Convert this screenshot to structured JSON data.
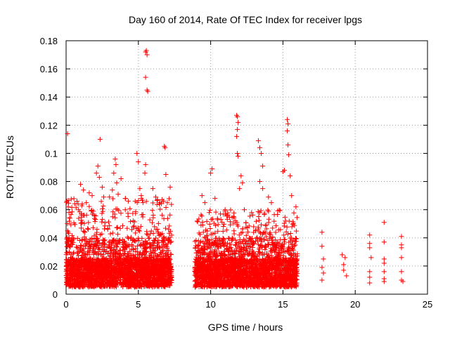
{
  "chart_data": {
    "type": "scatter",
    "title": "Day 160 of 2014, Rate Of TEC Index for receiver lpgs",
    "xlabel": "GPS time / hours",
    "ylabel": "ROTI / TECUs",
    "xlim": [
      0,
      25
    ],
    "ylim": [
      0,
      0.18
    ],
    "xticks": [
      0,
      5,
      10,
      15,
      20,
      25
    ],
    "yticks": [
      0,
      0.02,
      0.04,
      0.06,
      0.08,
      0.1,
      0.12,
      0.14,
      0.16,
      0.18
    ],
    "ytick_labels": [
      "0",
      "0.02",
      "0.04",
      "0.06",
      "0.08",
      "0.1",
      "0.12",
      "0.14",
      "0.16",
      "0.18"
    ],
    "grid": true,
    "marker": "+",
    "color": "#ff0000",
    "series": [
      {
        "name": "ROTI",
        "points": [
          [
            0.1,
            0.114
          ],
          [
            0.05,
            0.066
          ],
          [
            0.15,
            0.062
          ],
          [
            0.2,
            0.058
          ],
          [
            0.25,
            0.054
          ],
          [
            0.1,
            0.045
          ],
          [
            0.2,
            0.04
          ],
          [
            1.0,
            0.078
          ],
          [
            1.2,
            0.074
          ],
          [
            1.4,
            0.065
          ],
          [
            1.6,
            0.072
          ],
          [
            1.8,
            0.07
          ],
          [
            2.1,
            0.086
          ],
          [
            2.2,
            0.091
          ],
          [
            2.3,
            0.083
          ],
          [
            2.35,
            0.11
          ],
          [
            2.5,
            0.076
          ],
          [
            2.6,
            0.069
          ],
          [
            3.0,
            0.069
          ],
          [
            3.2,
            0.074
          ],
          [
            3.3,
            0.086
          ],
          [
            3.4,
            0.096
          ],
          [
            3.45,
            0.092
          ],
          [
            3.5,
            0.079
          ],
          [
            3.6,
            0.071
          ],
          [
            3.8,
            0.082
          ],
          [
            4.1,
            0.068
          ],
          [
            4.3,
            0.066
          ],
          [
            4.9,
            0.1
          ],
          [
            5.0,
            0.094
          ],
          [
            5.1,
            0.075
          ],
          [
            5.2,
            0.07
          ],
          [
            5.5,
            0.172
          ],
          [
            5.55,
            0.173
          ],
          [
            5.6,
            0.17
          ],
          [
            5.5,
            0.154
          ],
          [
            5.6,
            0.145
          ],
          [
            5.65,
            0.144
          ],
          [
            5.5,
            0.092
          ],
          [
            5.45,
            0.086
          ],
          [
            6.0,
            0.075
          ],
          [
            6.2,
            0.069
          ],
          [
            6.5,
            0.065
          ],
          [
            6.8,
            0.105
          ],
          [
            6.85,
            0.104
          ],
          [
            6.9,
            0.085
          ],
          [
            7.2,
            0.076
          ],
          [
            7.0,
            0.065
          ],
          [
            9.4,
            0.07
          ],
          [
            9.6,
            0.065
          ],
          [
            10.0,
            0.086
          ],
          [
            10.1,
            0.089
          ],
          [
            10.3,
            0.068
          ],
          [
            11.0,
            0.06
          ],
          [
            11.8,
            0.127
          ],
          [
            11.85,
            0.126
          ],
          [
            11.9,
            0.122
          ],
          [
            11.85,
            0.117
          ],
          [
            11.8,
            0.112
          ],
          [
            11.85,
            0.1
          ],
          [
            11.9,
            0.098
          ],
          [
            12.1,
            0.084
          ],
          [
            12.2,
            0.079
          ],
          [
            12.0,
            0.075
          ],
          [
            13.3,
            0.109
          ],
          [
            13.4,
            0.104
          ],
          [
            13.5,
            0.1
          ],
          [
            13.6,
            0.091
          ],
          [
            13.4,
            0.08
          ],
          [
            13.6,
            0.075
          ],
          [
            14.0,
            0.069
          ],
          [
            14.2,
            0.065
          ],
          [
            15.0,
            0.087
          ],
          [
            15.1,
            0.088
          ],
          [
            15.3,
            0.124
          ],
          [
            15.35,
            0.121
          ],
          [
            15.3,
            0.116
          ],
          [
            15.35,
            0.106
          ],
          [
            15.4,
            0.099
          ],
          [
            15.5,
            0.084
          ],
          [
            15.6,
            0.07
          ],
          [
            15.9,
            0.062
          ],
          [
            17.7,
            0.044
          ],
          [
            17.7,
            0.034
          ],
          [
            17.8,
            0.025
          ],
          [
            17.7,
            0.019
          ],
          [
            17.8,
            0.015
          ],
          [
            17.7,
            0.01
          ],
          [
            19.1,
            0.028
          ],
          [
            19.3,
            0.026
          ],
          [
            19.2,
            0.021
          ],
          [
            19.2,
            0.017
          ],
          [
            19.4,
            0.013
          ],
          [
            21.0,
            0.042
          ],
          [
            21.0,
            0.036
          ],
          [
            21.0,
            0.033
          ],
          [
            21.1,
            0.026
          ],
          [
            21.0,
            0.016
          ],
          [
            21.0,
            0.012
          ],
          [
            21.0,
            0.008
          ],
          [
            22.0,
            0.051
          ],
          [
            22.0,
            0.037
          ],
          [
            22.0,
            0.025
          ],
          [
            22.0,
            0.022
          ],
          [
            22.0,
            0.016
          ],
          [
            22.0,
            0.011
          ],
          [
            22.0,
            0.009
          ],
          [
            23.2,
            0.041
          ],
          [
            23.2,
            0.035
          ],
          [
            23.2,
            0.033
          ],
          [
            23.2,
            0.026
          ],
          [
            23.2,
            0.016
          ],
          [
            23.2,
            0.01
          ],
          [
            23.3,
            0.009
          ]
        ],
        "dense_bands": [
          {
            "x_range": [
              0,
              7.3
            ],
            "y_range": [
              0.003,
              0.068
            ],
            "description": "dense measurement cloud"
          },
          {
            "x_range": [
              8.9,
              16.0
            ],
            "y_range": [
              0.003,
              0.06
            ],
            "description": "dense measurement cloud"
          }
        ]
      }
    ]
  }
}
